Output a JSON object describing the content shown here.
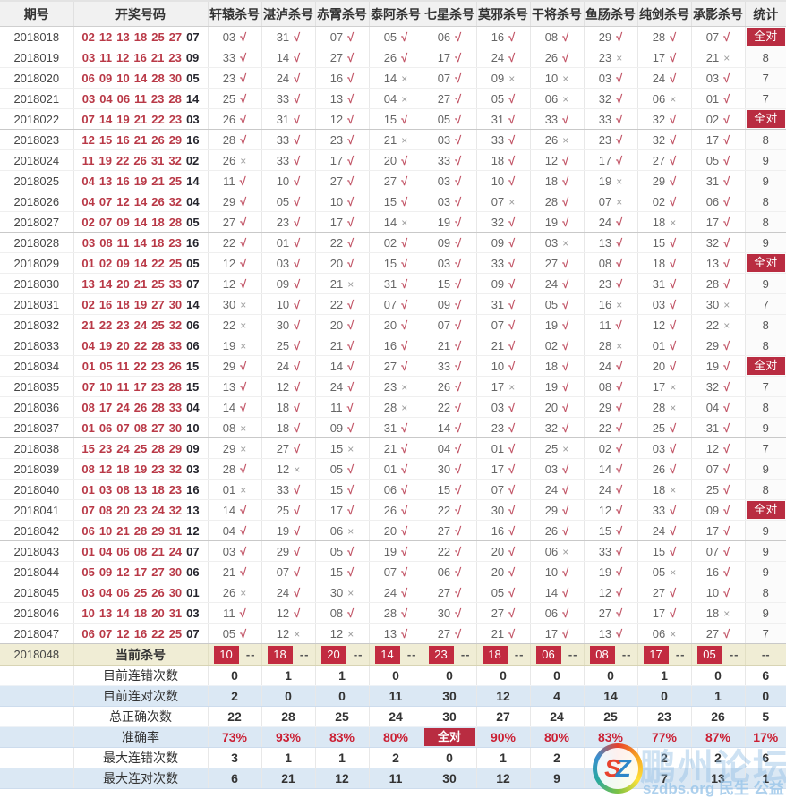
{
  "header": {
    "columns": [
      "期号",
      "开奖号码",
      "轩辕杀号",
      "湛泸杀号",
      "赤霄杀号",
      "泰阿杀号",
      "七星杀号",
      "莫邪杀号",
      "干将杀号",
      "鱼肠杀号",
      "纯剑杀号",
      "承影杀号",
      "统计"
    ]
  },
  "marks": {
    "ok": "√",
    "bad": "×"
  },
  "all_correct_label": "全对",
  "rows": [
    {
      "period": "2018018",
      "reds": [
        "02",
        "12",
        "13",
        "18",
        "25",
        "27"
      ],
      "blue": "07",
      "kills": [
        "03+",
        "31+",
        "07+",
        "05+",
        "06+",
        "16+",
        "08+",
        "29+",
        "28+",
        "07+"
      ],
      "stat": "全对"
    },
    {
      "period": "2018019",
      "reds": [
        "03",
        "11",
        "12",
        "16",
        "21",
        "23"
      ],
      "blue": "09",
      "kills": [
        "33+",
        "14+",
        "27+",
        "26+",
        "17+",
        "24+",
        "26+",
        "23-",
        "17+",
        "21-"
      ],
      "stat": "8"
    },
    {
      "period": "2018020",
      "reds": [
        "06",
        "09",
        "10",
        "14",
        "28",
        "30"
      ],
      "blue": "05",
      "kills": [
        "23+",
        "24+",
        "16+",
        "14-",
        "07+",
        "09-",
        "10-",
        "03+",
        "24+",
        "03+"
      ],
      "stat": "7"
    },
    {
      "period": "2018021",
      "reds": [
        "03",
        "04",
        "06",
        "11",
        "23",
        "28"
      ],
      "blue": "14",
      "kills": [
        "25+",
        "33+",
        "13+",
        "04-",
        "27+",
        "05+",
        "06-",
        "32+",
        "06-",
        "01+"
      ],
      "stat": "7"
    },
    {
      "period": "2018022",
      "reds": [
        "07",
        "14",
        "19",
        "21",
        "22",
        "23"
      ],
      "blue": "03",
      "kills": [
        "26+",
        "31+",
        "12+",
        "15+",
        "05+",
        "31+",
        "33+",
        "33+",
        "32+",
        "02+"
      ],
      "stat": "全对"
    },
    {
      "period": "2018023",
      "reds": [
        "12",
        "15",
        "16",
        "21",
        "26",
        "29"
      ],
      "blue": "16",
      "kills": [
        "28+",
        "33+",
        "23+",
        "21-",
        "03+",
        "33+",
        "26-",
        "23+",
        "32+",
        "17+"
      ],
      "stat": "8"
    },
    {
      "period": "2018024",
      "reds": [
        "11",
        "19",
        "22",
        "26",
        "31",
        "32"
      ],
      "blue": "02",
      "kills": [
        "26-",
        "33+",
        "17+",
        "20+",
        "33+",
        "18+",
        "12+",
        "17+",
        "27+",
        "05+"
      ],
      "stat": "9"
    },
    {
      "period": "2018025",
      "reds": [
        "04",
        "13",
        "16",
        "19",
        "21",
        "25"
      ],
      "blue": "14",
      "kills": [
        "11+",
        "10+",
        "27+",
        "27+",
        "03+",
        "10+",
        "18+",
        "19-",
        "29+",
        "31+"
      ],
      "stat": "9"
    },
    {
      "period": "2018026",
      "reds": [
        "04",
        "07",
        "12",
        "14",
        "26",
        "32"
      ],
      "blue": "04",
      "kills": [
        "29+",
        "05+",
        "10+",
        "15+",
        "03+",
        "07-",
        "28+",
        "07-",
        "02+",
        "06+"
      ],
      "stat": "8"
    },
    {
      "period": "2018027",
      "reds": [
        "02",
        "07",
        "09",
        "14",
        "18",
        "28"
      ],
      "blue": "05",
      "kills": [
        "27+",
        "23+",
        "17+",
        "14-",
        "19+",
        "32+",
        "19+",
        "24+",
        "18-",
        "17+"
      ],
      "stat": "8"
    },
    {
      "period": "2018028",
      "reds": [
        "03",
        "08",
        "11",
        "14",
        "18",
        "23"
      ],
      "blue": "16",
      "kills": [
        "22+",
        "01+",
        "22+",
        "02+",
        "09+",
        "09+",
        "03-",
        "13+",
        "15+",
        "32+"
      ],
      "stat": "9"
    },
    {
      "period": "2018029",
      "reds": [
        "01",
        "02",
        "09",
        "14",
        "22",
        "25"
      ],
      "blue": "05",
      "kills": [
        "12+",
        "03+",
        "20+",
        "15+",
        "03+",
        "33+",
        "27+",
        "08+",
        "18+",
        "13+"
      ],
      "stat": "全对"
    },
    {
      "period": "2018030",
      "reds": [
        "13",
        "14",
        "20",
        "21",
        "25",
        "33"
      ],
      "blue": "07",
      "kills": [
        "12+",
        "09+",
        "21-",
        "31+",
        "15+",
        "09+",
        "24+",
        "23+",
        "31+",
        "28+"
      ],
      "stat": "9"
    },
    {
      "period": "2018031",
      "reds": [
        "02",
        "16",
        "18",
        "19",
        "27",
        "30"
      ],
      "blue": "14",
      "kills": [
        "30-",
        "10+",
        "22+",
        "07+",
        "09+",
        "31+",
        "05+",
        "16-",
        "03+",
        "30-"
      ],
      "stat": "7"
    },
    {
      "period": "2018032",
      "reds": [
        "21",
        "22",
        "23",
        "24",
        "25",
        "32"
      ],
      "blue": "06",
      "kills": [
        "22-",
        "30+",
        "20+",
        "20+",
        "07+",
        "07+",
        "19+",
        "11+",
        "12+",
        "22-"
      ],
      "stat": "8"
    },
    {
      "period": "2018033",
      "reds": [
        "04",
        "19",
        "20",
        "22",
        "28",
        "33"
      ],
      "blue": "06",
      "kills": [
        "19-",
        "25+",
        "21+",
        "16+",
        "21+",
        "21+",
        "02+",
        "28-",
        "01+",
        "29+"
      ],
      "stat": "8"
    },
    {
      "period": "2018034",
      "reds": [
        "01",
        "05",
        "11",
        "22",
        "23",
        "26"
      ],
      "blue": "15",
      "kills": [
        "29+",
        "24+",
        "14+",
        "27+",
        "33+",
        "10+",
        "18+",
        "24+",
        "20+",
        "19+"
      ],
      "stat": "全对"
    },
    {
      "period": "2018035",
      "reds": [
        "07",
        "10",
        "11",
        "17",
        "23",
        "28"
      ],
      "blue": "15",
      "kills": [
        "13+",
        "12+",
        "24+",
        "23-",
        "26+",
        "17-",
        "19+",
        "08+",
        "17-",
        "32+"
      ],
      "stat": "7"
    },
    {
      "period": "2018036",
      "reds": [
        "08",
        "17",
        "24",
        "26",
        "28",
        "33"
      ],
      "blue": "04",
      "kills": [
        "14+",
        "18+",
        "11+",
        "28-",
        "22+",
        "03+",
        "20+",
        "29+",
        "28-",
        "04+"
      ],
      "stat": "8"
    },
    {
      "period": "2018037",
      "reds": [
        "01",
        "06",
        "07",
        "08",
        "27",
        "30"
      ],
      "blue": "10",
      "kills": [
        "08-",
        "18+",
        "09+",
        "31+",
        "14+",
        "23+",
        "32+",
        "22+",
        "25+",
        "31+"
      ],
      "stat": "9"
    },
    {
      "period": "2018038",
      "reds": [
        "15",
        "23",
        "24",
        "25",
        "28",
        "29"
      ],
      "blue": "09",
      "kills": [
        "29-",
        "27+",
        "15-",
        "21+",
        "04+",
        "01+",
        "25-",
        "02+",
        "03+",
        "12+"
      ],
      "stat": "7"
    },
    {
      "period": "2018039",
      "reds": [
        "08",
        "12",
        "18",
        "19",
        "23",
        "32"
      ],
      "blue": "03",
      "kills": [
        "28+",
        "12-",
        "05+",
        "01+",
        "30+",
        "17+",
        "03+",
        "14+",
        "26+",
        "07+"
      ],
      "stat": "9"
    },
    {
      "period": "2018040",
      "reds": [
        "01",
        "03",
        "08",
        "13",
        "18",
        "23"
      ],
      "blue": "16",
      "kills": [
        "01-",
        "33+",
        "15+",
        "06+",
        "15+",
        "07+",
        "24+",
        "24+",
        "18-",
        "25+"
      ],
      "stat": "8"
    },
    {
      "period": "2018041",
      "reds": [
        "07",
        "08",
        "20",
        "23",
        "24",
        "32"
      ],
      "blue": "13",
      "kills": [
        "14+",
        "25+",
        "17+",
        "26+",
        "22+",
        "30+",
        "29+",
        "12+",
        "33+",
        "09+"
      ],
      "stat": "全对"
    },
    {
      "period": "2018042",
      "reds": [
        "06",
        "10",
        "21",
        "28",
        "29",
        "31"
      ],
      "blue": "12",
      "kills": [
        "04+",
        "19+",
        "06-",
        "20+",
        "27+",
        "16+",
        "26+",
        "15+",
        "24+",
        "17+"
      ],
      "stat": "9"
    },
    {
      "period": "2018043",
      "reds": [
        "01",
        "04",
        "06",
        "08",
        "21",
        "24"
      ],
      "blue": "07",
      "kills": [
        "03+",
        "29+",
        "05+",
        "19+",
        "22+",
        "20+",
        "06-",
        "33+",
        "15+",
        "07+"
      ],
      "stat": "9"
    },
    {
      "period": "2018044",
      "reds": [
        "05",
        "09",
        "12",
        "17",
        "27",
        "30"
      ],
      "blue": "06",
      "kills": [
        "21+",
        "07+",
        "15+",
        "07+",
        "06+",
        "20+",
        "10+",
        "19+",
        "05-",
        "16+"
      ],
      "stat": "9"
    },
    {
      "period": "2018045",
      "reds": [
        "03",
        "04",
        "06",
        "25",
        "26",
        "30"
      ],
      "blue": "01",
      "kills": [
        "26-",
        "24+",
        "30-",
        "24+",
        "27+",
        "05+",
        "14+",
        "12+",
        "27+",
        "10+"
      ],
      "stat": "8"
    },
    {
      "period": "2018046",
      "reds": [
        "10",
        "13",
        "14",
        "18",
        "20",
        "31"
      ],
      "blue": "03",
      "kills": [
        "11+",
        "12+",
        "08+",
        "28+",
        "30+",
        "27+",
        "06+",
        "27+",
        "17+",
        "18-"
      ],
      "stat": "9"
    },
    {
      "period": "2018047",
      "reds": [
        "06",
        "07",
        "12",
        "16",
        "22",
        "25"
      ],
      "blue": "07",
      "kills": [
        "05+",
        "12-",
        "12-",
        "13+",
        "27+",
        "21+",
        "17+",
        "13+",
        "06-",
        "27+"
      ],
      "stat": "7"
    }
  ],
  "current": {
    "period": "2018048",
    "label": "当前杀号",
    "kills": [
      "10",
      "18",
      "20",
      "14",
      "23",
      "18",
      "06",
      "08",
      "17",
      "05"
    ],
    "sep": "--",
    "stat": "--"
  },
  "summary": [
    {
      "label": "目前连错次数",
      "type": "plain",
      "values": [
        "0",
        "1",
        "1",
        "0",
        "0",
        "0",
        "0",
        "0",
        "1",
        "0"
      ],
      "stat": "6"
    },
    {
      "label": "目前连对次数",
      "type": "plain",
      "values": [
        "2",
        "0",
        "0",
        "11",
        "30",
        "12",
        "4",
        "14",
        "0",
        "1"
      ],
      "stat": "0"
    },
    {
      "label": "总正确次数",
      "type": "plain",
      "values": [
        "22",
        "28",
        "25",
        "24",
        "30",
        "27",
        "24",
        "25",
        "23",
        "26"
      ],
      "stat": "5"
    },
    {
      "label": "准确率",
      "type": "rate",
      "values": [
        "73%",
        "93%",
        "83%",
        "80%",
        "全对",
        "90%",
        "80%",
        "83%",
        "77%",
        "87%"
      ],
      "stat": "17%"
    },
    {
      "label": "最大连错次数",
      "type": "plain",
      "values": [
        "3",
        "1",
        "1",
        "2",
        "0",
        "1",
        "2",
        "2",
        "2",
        "2"
      ],
      "stat": "6"
    },
    {
      "label": "最大连对次数",
      "type": "plain",
      "values": [
        "6",
        "21",
        "12",
        "11",
        "30",
        "12",
        "9",
        "14",
        "7",
        "13"
      ],
      "stat": "1"
    }
  ],
  "watermark": {
    "logo_s": "S",
    "logo_z": "Z",
    "big": "鹏州论坛",
    "site": "szdbs.org 民生 公益"
  },
  "colors": {
    "red_ball": "#b93947",
    "blue_ball": "#26262e",
    "check": "#c25466",
    "cross": "#9c9c9c",
    "all_correct_badge": "#b92c41",
    "current_row_bg": "#f0edd5",
    "current_box": "#c22b40",
    "summary_alt_bg": "#dbe8f4",
    "rate_text": "#cb1f33",
    "header_bg": "#f1f1f1"
  }
}
